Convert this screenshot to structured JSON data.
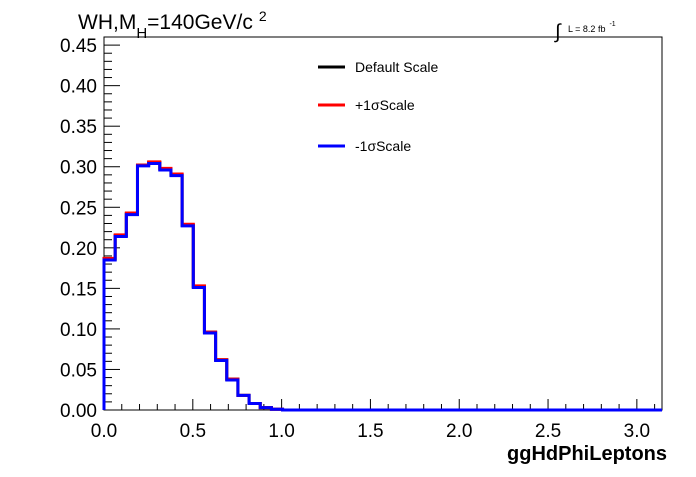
{
  "title": {
    "main": "WH,M",
    "sub": "H",
    "rest": "=140GeV/c",
    "sup": "2"
  },
  "lumi": {
    "symbol": "∫",
    "text": "L = 8.2 fb",
    "sup": "-1"
  },
  "chart_data": {
    "type": "line",
    "drawstyle": "step",
    "xlabel": "ggHdPhiLeptons",
    "ylabel": "",
    "xlim": [
      0,
      3.1416
    ],
    "ylim": [
      0,
      0.46
    ],
    "xticks": [
      0.0,
      0.5,
      1.0,
      1.5,
      2.0,
      2.5,
      3.0
    ],
    "xtick_labels": [
      "0.0",
      "0.5",
      "1.0",
      "1.5",
      "2.0",
      "2.5",
      "3.0"
    ],
    "yticks": [
      0.0,
      0.05,
      0.1,
      0.15,
      0.2,
      0.25,
      0.3,
      0.35,
      0.4,
      0.45
    ],
    "ytick_labels": [
      "0.00",
      "0.05",
      "0.10",
      "0.15",
      "0.20",
      "0.25",
      "0.30",
      "0.35",
      "0.40",
      "0.45"
    ],
    "grid": false,
    "legend_position": "top-center",
    "bin_edges": [
      0.0,
      0.0628,
      0.1257,
      0.1885,
      0.2513,
      0.3142,
      0.377,
      0.4398,
      0.5027,
      0.5655,
      0.6283,
      0.6912,
      0.754,
      0.8168,
      0.8796,
      0.9425,
      1.0053,
      3.1416
    ],
    "series": [
      {
        "name": "Default Scale",
        "color": "#000000",
        "values": [
          0.186,
          0.215,
          0.242,
          0.302,
          0.305,
          0.297,
          0.29,
          0.228,
          0.152,
          0.096,
          0.062,
          0.038,
          0.018,
          0.008,
          0.003,
          0.001,
          0.0
        ]
      },
      {
        "name": "+1σScale",
        "color": "#ff0000",
        "values": [
          0.187,
          0.216,
          0.243,
          0.302,
          0.306,
          0.298,
          0.291,
          0.229,
          0.153,
          0.096,
          0.062,
          0.038,
          0.018,
          0.008,
          0.003,
          0.001,
          0.0
        ]
      },
      {
        "name": "-1σScale",
        "color": "#0000ff",
        "values": [
          0.185,
          0.214,
          0.241,
          0.301,
          0.304,
          0.296,
          0.289,
          0.227,
          0.151,
          0.095,
          0.061,
          0.037,
          0.018,
          0.008,
          0.003,
          0.001,
          0.0
        ]
      }
    ]
  }
}
